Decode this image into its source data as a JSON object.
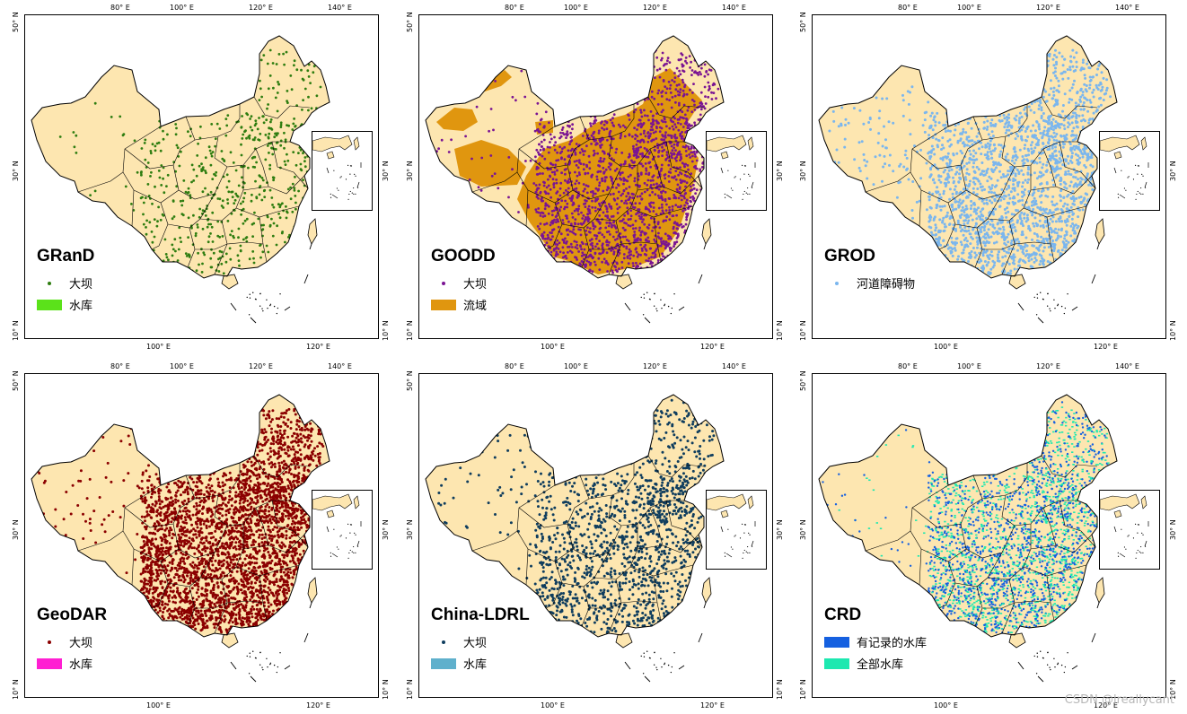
{
  "axis_labels": {
    "top": [
      "80° E",
      "100° E",
      "120° E",
      "140° E"
    ],
    "bottom": [
      "100° E",
      "120° E"
    ],
    "left": [
      "50° N",
      "30° N",
      "10° N"
    ],
    "right": [
      "30° N",
      "10° N"
    ]
  },
  "panels": [
    {
      "title": "GRanD",
      "dot_color": "#2e7d10",
      "legend": [
        {
          "kind": "dot",
          "color": "#2e7d10",
          "label": "大坝"
        },
        {
          "kind": "box",
          "color": "#5be21a",
          "label": "水库"
        }
      ]
    },
    {
      "title": "GOODD",
      "dot_color": "#7a1493",
      "legend": [
        {
          "kind": "dot",
          "color": "#7a1493",
          "label": "大坝"
        },
        {
          "kind": "box",
          "color": "#e0960f",
          "label": "流域"
        }
      ]
    },
    {
      "title": "GROD",
      "dot_color": "#7ab6ee",
      "legend": [
        {
          "kind": "dot",
          "color": "#7ab6ee",
          "label": "河道障碍物"
        }
      ]
    },
    {
      "title": "GeoDAR",
      "dot_color": "#8b0000",
      "legend": [
        {
          "kind": "dot",
          "color": "#8b0000",
          "label": "大坝"
        },
        {
          "kind": "box",
          "color": "#ff1fd2",
          "label": "水库"
        }
      ]
    },
    {
      "title": "China-LDRL",
      "dot_color": "#0f3d5e",
      "legend": [
        {
          "kind": "dot",
          "color": "#0f3d5e",
          "label": "大坝"
        },
        {
          "kind": "box",
          "color": "#5fb0cc",
          "label": "水库"
        }
      ]
    },
    {
      "title": "CRD",
      "dot_color": "#1560e0",
      "legend": [
        {
          "kind": "box",
          "color": "#1560e0",
          "label": "有记录的水库"
        },
        {
          "kind": "box",
          "color": "#1de8b0",
          "label": "全部水库"
        }
      ]
    }
  ],
  "colors": {
    "land": "#fde6b0",
    "border": "#000000",
    "goodd_basin": "#e0960f"
  },
  "watermark": "CSDN @lreallycant"
}
